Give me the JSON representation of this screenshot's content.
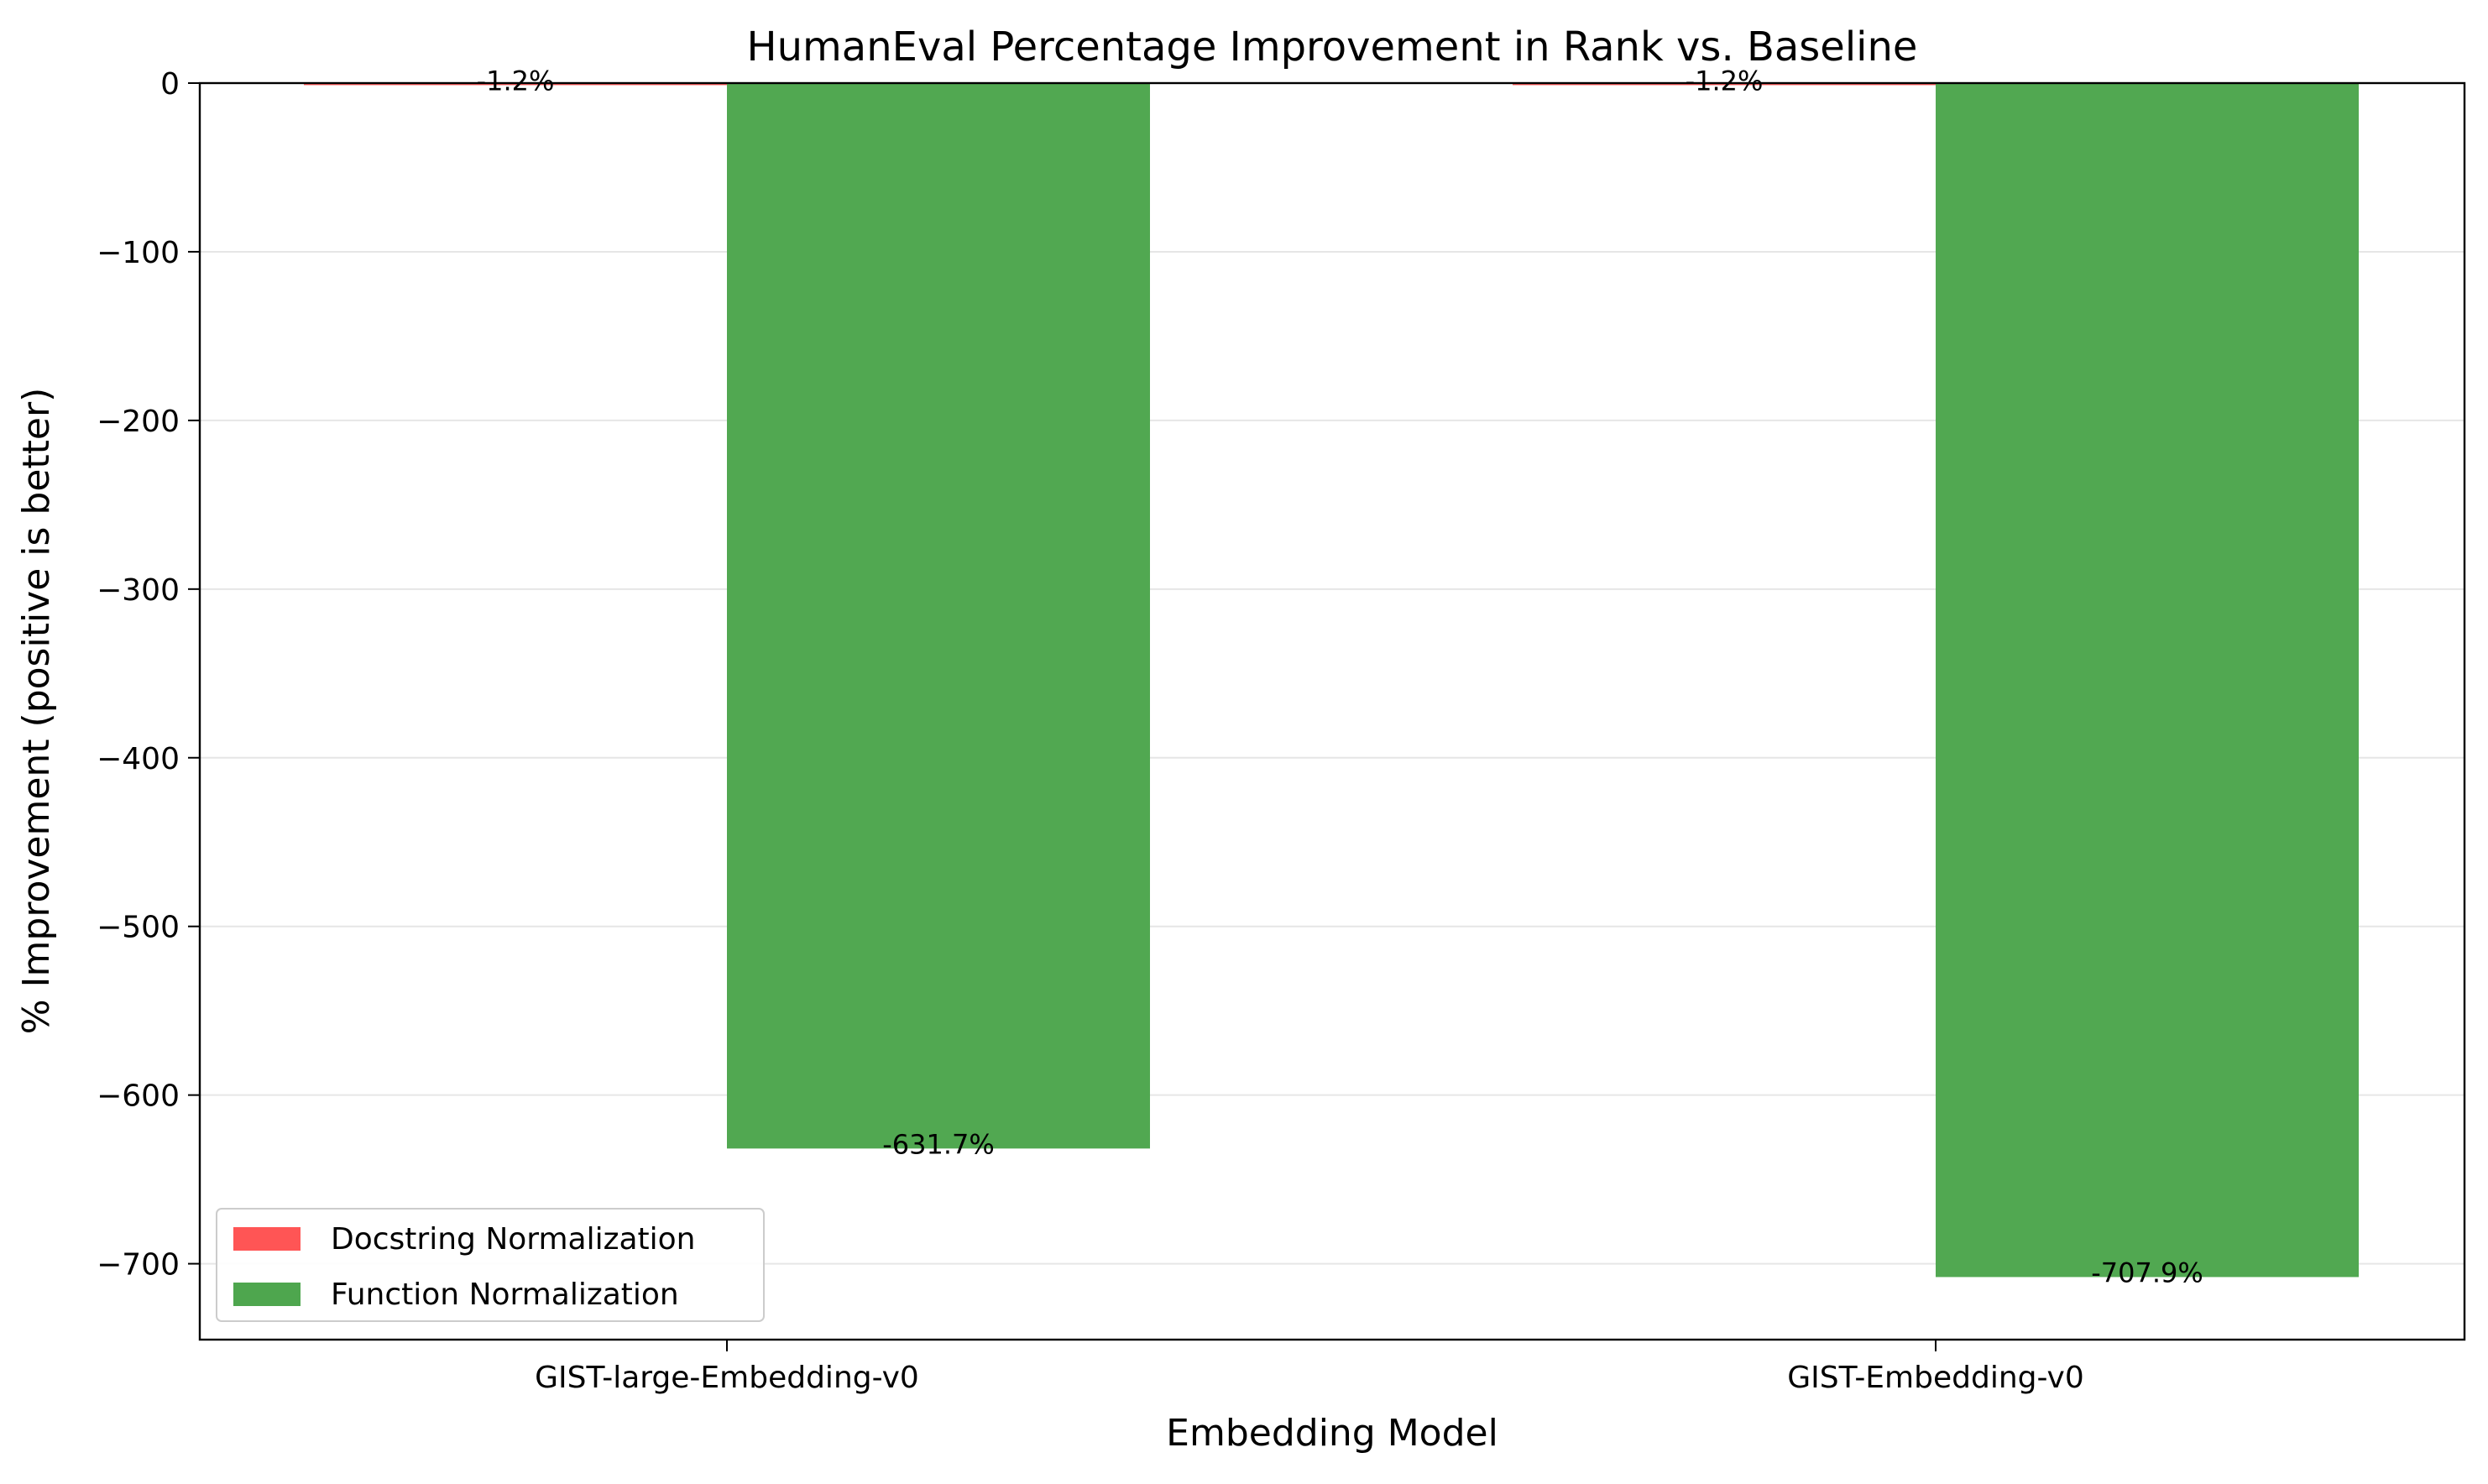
{
  "chart_data": {
    "type": "bar",
    "title": "HumanEval Percentage Improvement in Rank vs. Baseline",
    "xlabel": "Embedding Model",
    "ylabel": "% Improvement (positive is better)",
    "categories": [
      "GIST-large-Embedding-v0",
      "GIST-Embedding-v0"
    ],
    "series": [
      {
        "name": "Docstring Normalization",
        "color": "#ff5555",
        "values": [
          -1.2,
          -1.2
        ],
        "labels": [
          "-1.2%",
          "-1.2%"
        ]
      },
      {
        "name": "Function Normalization",
        "color": "#4ea64e",
        "values": [
          -631.7,
          -707.9
        ],
        "labels": [
          "-631.7%",
          "-707.9%"
        ]
      }
    ],
    "ylim": [
      -745,
      0
    ],
    "yticks": [
      0,
      -100,
      -200,
      -300,
      -400,
      -500,
      -600,
      -700
    ],
    "ytick_labels": [
      "0",
      "−100",
      "−200",
      "−300",
      "−400",
      "−500",
      "−600",
      "−700"
    ],
    "grid": "horizontal",
    "legend_position": "lower-left"
  }
}
